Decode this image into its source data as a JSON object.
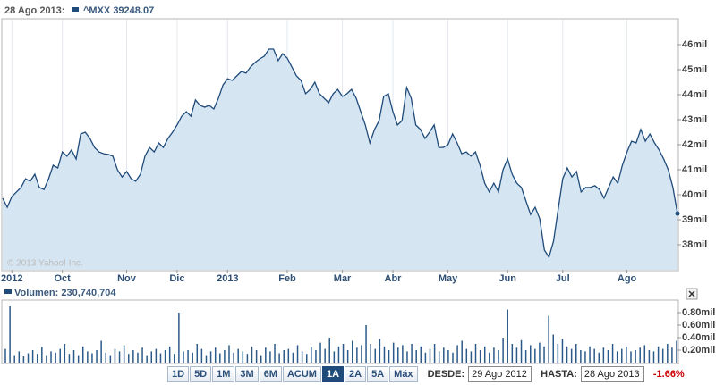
{
  "header": {
    "date": "28 Ago 2013:",
    "symbol": "^MXX 39248.07"
  },
  "chart_data": [
    {
      "type": "area",
      "color": "#1f4b7a",
      "fill": "#d6e5f2",
      "grid": true,
      "copyright": "© 2013 Yahoo! Inc.",
      "categories": [
        null,
        null,
        "2012",
        null,
        null,
        null,
        null,
        null,
        null,
        null,
        null,
        null,
        null,
        "Oct",
        null,
        null,
        null,
        null,
        null,
        null,
        null,
        null,
        null,
        null,
        null,
        null,
        null,
        "Nov",
        null,
        null,
        null,
        null,
        null,
        null,
        null,
        null,
        null,
        null,
        "Dic",
        null,
        null,
        null,
        null,
        null,
        null,
        null,
        null,
        null,
        null,
        "2013",
        null,
        null,
        null,
        null,
        null,
        null,
        null,
        null,
        null,
        null,
        null,
        null,
        "Feb",
        null,
        null,
        null,
        null,
        null,
        null,
        null,
        null,
        null,
        null,
        null,
        "Mar",
        null,
        null,
        null,
        null,
        null,
        null,
        null,
        null,
        null,
        null,
        "Abr",
        null,
        null,
        null,
        null,
        null,
        null,
        null,
        null,
        null,
        null,
        null,
        "May",
        null,
        null,
        null,
        null,
        null,
        null,
        null,
        null,
        null,
        null,
        null,
        null,
        "Jun",
        null,
        null,
        null,
        null,
        null,
        null,
        null,
        null,
        null,
        null,
        null,
        "Jul",
        null,
        null,
        null,
        null,
        null,
        null,
        null,
        null,
        null,
        null,
        null,
        null,
        null,
        "Ago",
        null,
        null,
        null,
        null,
        null,
        null,
        null,
        null,
        null,
        null,
        null
      ],
      "values": [
        39860,
        39500,
        39930,
        40110,
        40290,
        40640,
        40540,
        40820,
        40290,
        40210,
        40640,
        41180,
        41070,
        41710,
        41540,
        41790,
        41430,
        42430,
        42500,
        42250,
        41890,
        41710,
        41640,
        41610,
        41540,
        41000,
        40710,
        40930,
        40640,
        40540,
        40820,
        41540,
        41890,
        41710,
        42070,
        41890,
        42250,
        42500,
        42790,
        43140,
        43320,
        43140,
        43790,
        43570,
        43500,
        43570,
        43430,
        43860,
        44390,
        44640,
        44570,
        44750,
        44930,
        44860,
        45110,
        45290,
        45430,
        45540,
        45820,
        45820,
        45360,
        45640,
        45460,
        45110,
        44750,
        44570,
        44040,
        44210,
        44500,
        44040,
        43860,
        43680,
        44040,
        44210,
        43930,
        44040,
        44210,
        43860,
        43320,
        42790,
        42070,
        42610,
        42960,
        43930,
        44040,
        43320,
        42790,
        42960,
        44290,
        43860,
        42790,
        42610,
        42250,
        42500,
        42790,
        41890,
        41890,
        42000,
        42430,
        42070,
        41640,
        41710,
        41540,
        41710,
        41180,
        40460,
        40110,
        40460,
        40110,
        41000,
        41430,
        40820,
        40460,
        40290,
        39750,
        39210,
        39500,
        39040,
        37790,
        37500,
        38140,
        39390,
        40640,
        41070,
        40710,
        40930,
        40110,
        40290,
        40290,
        40360,
        40210,
        39860,
        40290,
        40710,
        40460,
        41180,
        41710,
        42140,
        42070,
        42610,
        42140,
        42430,
        42070,
        41790,
        41430,
        41000,
        40290,
        39248.07
      ],
      "ylim": [
        37000,
        47000
      ],
      "yticks": [
        {
          "value": 38000,
          "label": "38mil"
        },
        {
          "value": 39000,
          "label": "39mil"
        },
        {
          "value": 40000,
          "label": "40mil"
        },
        {
          "value": 41000,
          "label": "41mil"
        },
        {
          "value": 42000,
          "label": "42mil"
        },
        {
          "value": 43000,
          "label": "43mil"
        },
        {
          "value": 44000,
          "label": "44mil"
        },
        {
          "value": 45000,
          "label": "45mil"
        },
        {
          "value": 46000,
          "label": "46mil"
        }
      ]
    },
    {
      "type": "bar",
      "title": "Volumen: 230,740,704",
      "color": "#2b5a8a",
      "values": [
        0.22,
        0.9,
        0.12,
        0.18,
        0.1,
        0.15,
        0.2,
        0.14,
        0.25,
        0.12,
        0.18,
        0.16,
        0.22,
        0.3,
        0.14,
        0.2,
        0.12,
        0.26,
        0.18,
        0.15,
        0.2,
        0.35,
        0.16,
        0.12,
        0.22,
        0.18,
        0.28,
        0.14,
        0.2,
        0.16,
        0.24,
        0.12,
        0.18,
        0.22,
        0.15,
        0.2,
        0.26,
        0.14,
        0.8,
        0.18,
        0.2,
        0.16,
        0.3,
        0.22,
        0.12,
        0.18,
        0.24,
        0.15,
        0.2,
        0.28,
        0.16,
        0.22,
        0.18,
        0.14,
        0.26,
        0.2,
        0.12,
        0.24,
        0.18,
        0.3,
        0.15,
        0.2,
        0.22,
        0.16,
        0.28,
        0.18,
        0.14,
        0.25,
        0.2,
        0.32,
        0.22,
        0.4,
        0.18,
        0.26,
        0.3,
        0.2,
        0.35,
        0.24,
        0.28,
        0.6,
        0.3,
        0.22,
        0.38,
        0.26,
        0.2,
        0.32,
        0.24,
        0.28,
        0.18,
        0.3,
        0.2,
        0.26,
        0.16,
        0.22,
        0.3,
        0.18,
        0.24,
        0.2,
        0.16,
        0.28,
        0.35,
        0.22,
        0.18,
        0.3,
        0.2,
        0.26,
        0.16,
        0.24,
        0.2,
        0.4,
        0.85,
        0.3,
        0.24,
        0.36,
        0.2,
        0.28,
        0.22,
        0.32,
        0.26,
        0.75,
        0.45,
        0.3,
        0.38,
        0.26,
        0.22,
        0.3,
        0.2,
        0.18,
        0.26,
        0.22,
        0.16,
        0.24,
        0.2,
        0.3,
        0.18,
        0.22,
        0.26,
        0.18,
        0.2,
        0.24,
        0.28,
        0.2,
        0.18,
        0.26,
        0.22,
        0.3,
        0.24,
        0.35
      ],
      "ylim": [
        0,
        1
      ],
      "yticks": [
        {
          "value": 0.2,
          "label": "0.20mil"
        },
        {
          "value": 0.4,
          "label": "0.40mil"
        },
        {
          "value": 0.6,
          "label": "0.60mil"
        },
        {
          "value": 0.8,
          "label": "0.80mil"
        }
      ]
    }
  ],
  "controls": {
    "ranges": [
      "1D",
      "5D",
      "1M",
      "3M",
      "6M",
      "ACUM",
      "1A",
      "2A",
      "5A",
      "Máx"
    ],
    "from_label": "DESDE:",
    "from": "29 Ago 2012",
    "to_label": "HASTA:",
    "to": "28 Ago 2013",
    "change": "-1.66%"
  }
}
